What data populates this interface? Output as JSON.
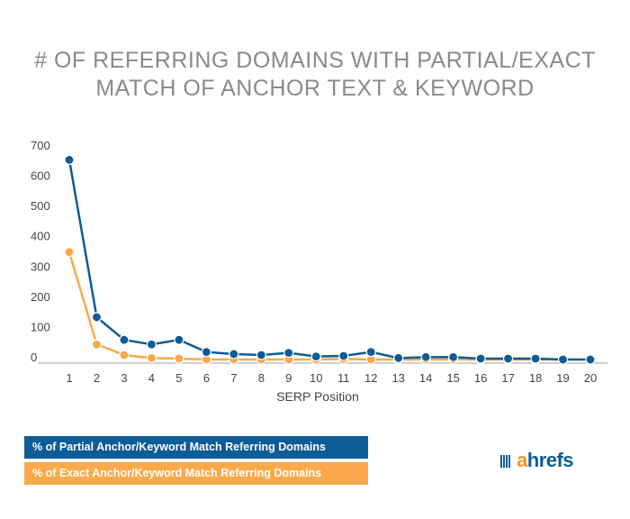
{
  "chart_data": {
    "type": "line",
    "title": [
      "# OF REFERRING DOMAINS WITH PARTIAL/EXACT",
      "MATCH OF ANCHOR TEXT & KEYWORD"
    ],
    "xlabel": "SERP Position",
    "ylabel": "",
    "ylim": [
      0,
      700
    ],
    "yticks": [
      0,
      100,
      200,
      300,
      400,
      500,
      600,
      700
    ],
    "categories": [
      1,
      2,
      3,
      4,
      5,
      6,
      7,
      8,
      9,
      10,
      11,
      12,
      13,
      14,
      15,
      16,
      17,
      18,
      19,
      20
    ],
    "grid": false,
    "legend_placement": "bottom-left",
    "series": [
      {
        "name": "% of Partial Anchor/Keyword Match Referring Domains",
        "color": "#0d5c96",
        "values": [
          660,
          140,
          65,
          50,
          65,
          25,
          18,
          15,
          22,
          10,
          12,
          25,
          5,
          8,
          8,
          3,
          3,
          3,
          0,
          0
        ]
      },
      {
        "name": "% of Exact Anchor/Keyword Match Referring Domains",
        "color": "#fba94a",
        "values": [
          355,
          50,
          15,
          5,
          3,
          0,
          0,
          0,
          0,
          0,
          2,
          0,
          0,
          0,
          0,
          0,
          0,
          0,
          0,
          0
        ]
      }
    ]
  },
  "logo": {
    "prefix": "a",
    "rest": "hrefs"
  }
}
